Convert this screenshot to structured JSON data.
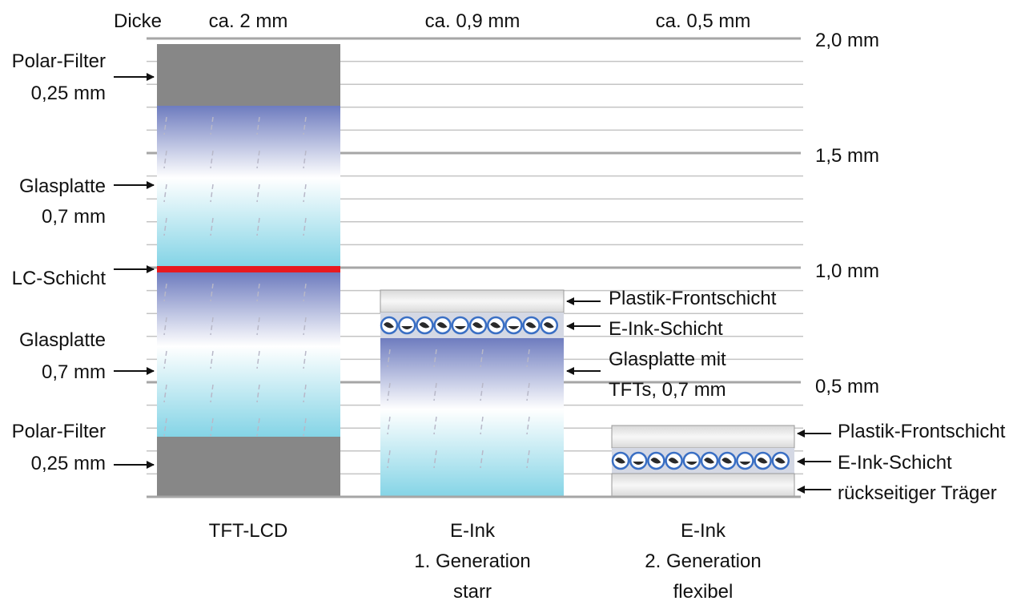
{
  "header": {
    "dicke_label": "Dicke",
    "col1": "ca. 2 mm",
    "col2": "ca. 0,9 mm",
    "col3": "ca. 0,5 mm"
  },
  "scale": {
    "t20": "2,0 mm",
    "t15": "1,5 mm",
    "t10": "1,0 mm",
    "t05": "0,5 mm"
  },
  "left_labels": {
    "polar_top_1": "Polar-Filter",
    "polar_top_2": "0,25 mm",
    "glas_top_1": "Glasplatte",
    "glas_top_2": "0,7 mm",
    "lc": "LC-Schicht",
    "glas_bot_1": "Glasplatte",
    "glas_bot_2": "0,7 mm",
    "polar_bot_1": "Polar-Filter",
    "polar_bot_2": "0,25 mm"
  },
  "gen1_labels": {
    "front": "Plastik-Frontschicht",
    "eink": "E-Ink-Schicht",
    "glas_1": "Glasplatte mit",
    "glas_2": "TFTs, 0,7 mm"
  },
  "gen2_labels": {
    "front": "Plastik-Frontschicht",
    "eink": "E-Ink-Schicht",
    "back": "rückseitiger Träger"
  },
  "captions": {
    "tft": "TFT-LCD",
    "gen1_1": "E-Ink",
    "gen1_2": "1. Generation",
    "gen1_3": "starr",
    "gen2_1": "E-Ink",
    "gen2_2": "2. Generation",
    "gen2_3": "flexibel"
  },
  "colors": {
    "polar": "#878787",
    "lc": "#e8191f",
    "glass_top": "#6e7cbf",
    "glass_mid": "#ffffff",
    "glass_bottom": "#84d4e6",
    "grid": "#bdbdbd",
    "grid_major": "#a6a6a6"
  }
}
